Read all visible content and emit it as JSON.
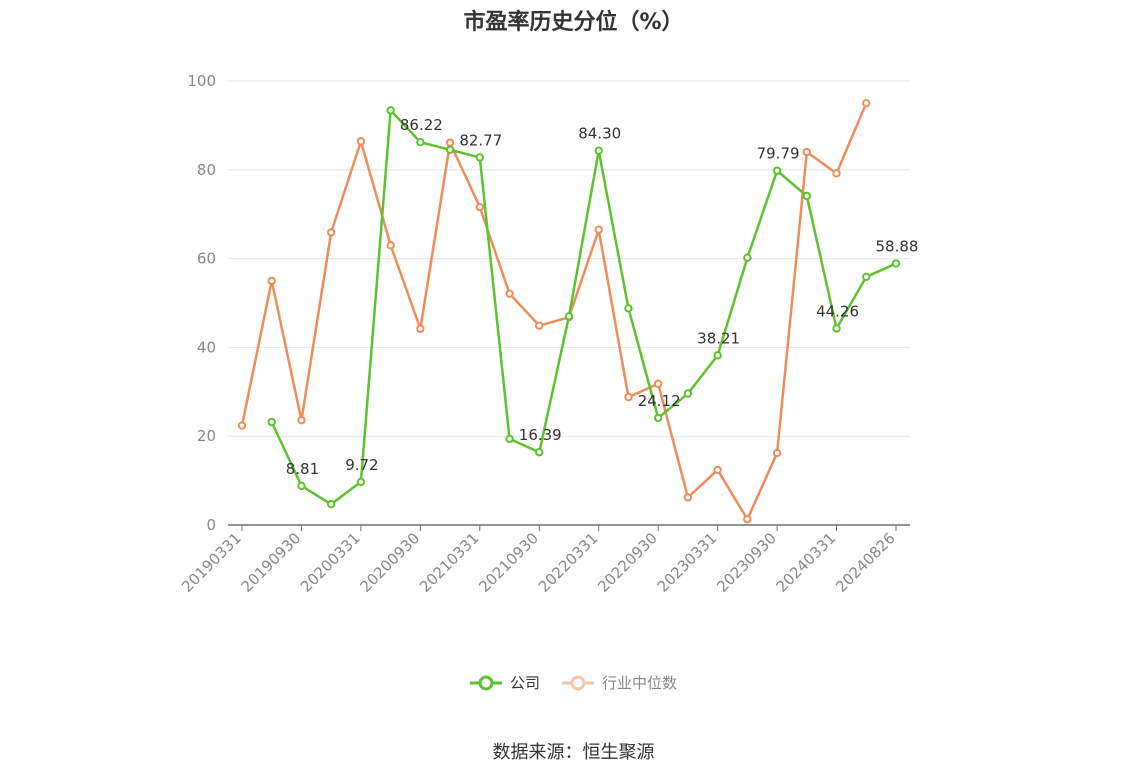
{
  "chart_data": {
    "type": "line",
    "title": "市盈率历史分位（%）",
    "xlabel": "",
    "ylabel": "",
    "ylim": [
      0,
      100
    ],
    "yticks": [
      0,
      20,
      40,
      60,
      80,
      100
    ],
    "grid": true,
    "legend_position": "bottom",
    "x_tick_labels": [
      "20190331",
      "20190930",
      "20200331",
      "20200930",
      "20210331",
      "20210930",
      "20220331",
      "20220930",
      "20230331",
      "20230930",
      "20240331",
      "20240826"
    ],
    "x": [
      "20190331",
      "20190630",
      "20190930",
      "20191231",
      "20200331",
      "20200630",
      "20200930",
      "20201231",
      "20210331",
      "20210630",
      "20210930",
      "20211231",
      "20220331",
      "20220630",
      "20220930",
      "20221231",
      "20230331",
      "20230630",
      "20230930",
      "20231231",
      "20240331",
      "20240630",
      "20240826"
    ],
    "series": [
      {
        "name": "公司",
        "color": "#5cc22e",
        "values": [
          null,
          23.2,
          8.81,
          4.7,
          9.72,
          93.4,
          86.22,
          84.5,
          82.77,
          19.4,
          16.39,
          47.0,
          84.3,
          48.8,
          24.12,
          29.6,
          38.21,
          60.2,
          79.79,
          74.1,
          44.26,
          55.9,
          58.88
        ]
      },
      {
        "name": "行业中位数",
        "color": "#f08c5a",
        "values": [
          22.4,
          55.0,
          23.6,
          65.9,
          86.4,
          63.0,
          44.2,
          86.1,
          71.6,
          52.1,
          44.9,
          46.8,
          66.5,
          28.8,
          31.8,
          6.2,
          12.4,
          1.3,
          16.2,
          84.0,
          79.2,
          95.0,
          null
        ]
      }
    ],
    "annotations": [
      {
        "series": 0,
        "index": 2,
        "text": "8.81"
      },
      {
        "series": 0,
        "index": 4,
        "text": "9.72"
      },
      {
        "series": 0,
        "index": 6,
        "text": "86.22"
      },
      {
        "series": 0,
        "index": 8,
        "text": "82.77"
      },
      {
        "series": 0,
        "index": 10,
        "text": "16.39"
      },
      {
        "series": 0,
        "index": 12,
        "text": "84.30"
      },
      {
        "series": 0,
        "index": 14,
        "text": "24.12"
      },
      {
        "series": 0,
        "index": 16,
        "text": "38.21"
      },
      {
        "series": 0,
        "index": 18,
        "text": "79.79"
      },
      {
        "series": 0,
        "index": 20,
        "text": "44.26"
      },
      {
        "series": 0,
        "index": 22,
        "text": "58.88"
      }
    ]
  },
  "source_text": "数据来源：恒生聚源"
}
